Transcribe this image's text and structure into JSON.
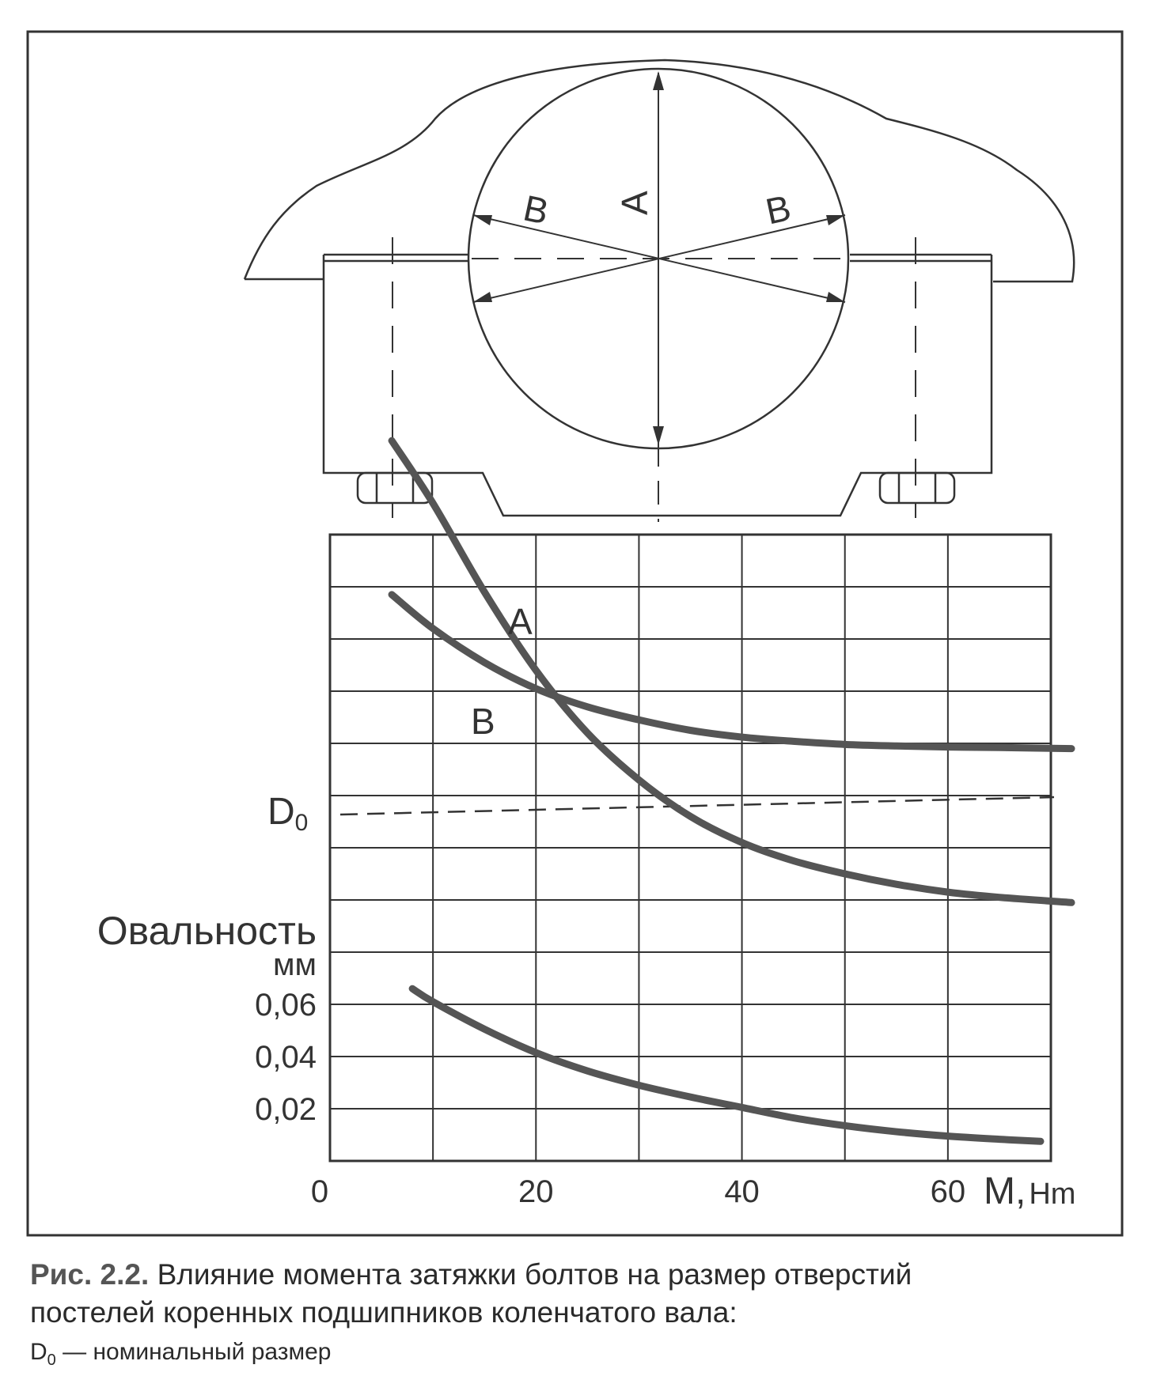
{
  "figure": {
    "section_labels": {
      "a": "A",
      "b_left": "B",
      "b_right": "B"
    }
  },
  "chart_data": {
    "type": "line",
    "x_axis": {
      "label": "M,",
      "unit": "Hm",
      "origin_label": "0",
      "tick_labels": [
        "20",
        "40",
        "60"
      ],
      "range": [
        0,
        70
      ]
    },
    "upper_panel": {
      "nominal_label": "D",
      "nominal_subscript": "0",
      "series": [
        {
          "name": "A",
          "x": [
            6,
            10,
            15,
            20,
            25,
            30,
            35,
            40,
            45,
            50,
            55,
            60,
            65,
            72
          ],
          "y": [
            13.8,
            12.6,
            10.9,
            9.4,
            8.2,
            7.3,
            6.6,
            6.1,
            5.75,
            5.5,
            5.3,
            5.15,
            5.05,
            4.95
          ]
        },
        {
          "name": "B",
          "x": [
            6,
            10,
            15,
            20,
            25,
            30,
            35,
            40,
            45,
            50,
            55,
            60,
            65,
            72
          ],
          "y": [
            10.85,
            10.2,
            9.55,
            9.05,
            8.7,
            8.45,
            8.25,
            8.12,
            8.04,
            7.98,
            7.95,
            7.93,
            7.92,
            7.9
          ]
        }
      ]
    },
    "lower_panel": {
      "ylabel": "Овальность",
      "yunit": "мм",
      "ytick_labels": [
        "0,06",
        "0,04",
        "0,02"
      ],
      "ylim": [
        0,
        0.1
      ],
      "series": [
        {
          "name": "",
          "x": [
            8,
            10,
            15,
            20,
            25,
            30,
            35,
            40,
            45,
            50,
            55,
            60,
            65,
            69
          ],
          "y": [
            0.066,
            0.061,
            0.0505,
            0.0415,
            0.0345,
            0.029,
            0.0245,
            0.0205,
            0.0165,
            0.0135,
            0.0112,
            0.0095,
            0.0083,
            0.0075
          ]
        }
      ]
    }
  },
  "caption": {
    "label": "Рис. 2.2.",
    "text1": "Влияние момента затяжки болтов на размер отверстий",
    "text2": "постелей коренных подшипников коленчатого вала:",
    "note_symbol": "D",
    "note_sub": "0",
    "note_text": " — номинальный размер"
  }
}
